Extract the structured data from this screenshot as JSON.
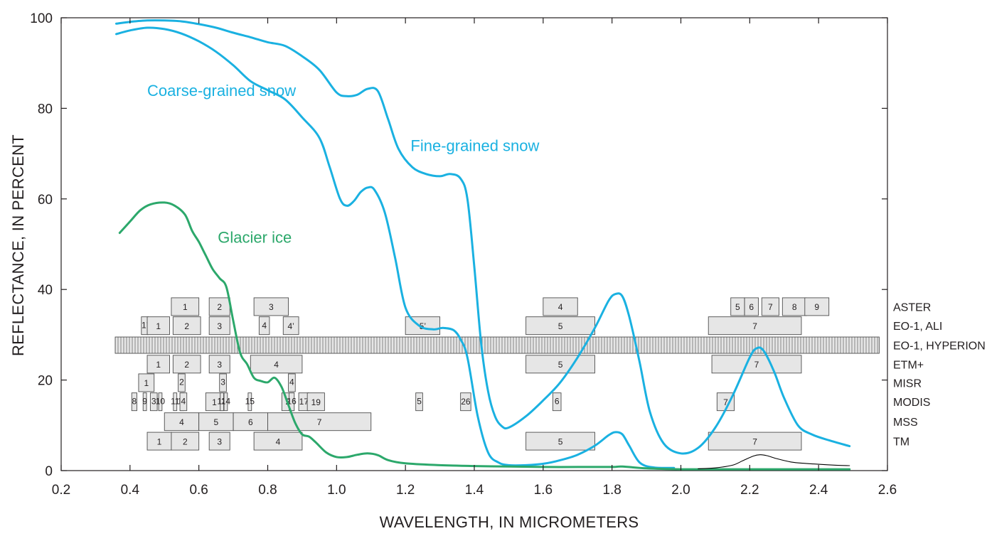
{
  "chart_data": {
    "type": "line",
    "xlabel": "WAVELENGTH, IN MICROMETERS",
    "ylabel": "REFLECTANCE, IN PERCENT",
    "xlim": [
      0.2,
      2.6
    ],
    "ylim": [
      0,
      100
    ],
    "xticks": [
      "0.2",
      "0.4",
      "0.6",
      "0.8",
      "1.0",
      "1.2",
      "1.4",
      "1.6",
      "1.8",
      "2.0",
      "2.2",
      "2.4",
      "2.6"
    ],
    "yticks": [
      "0",
      "20",
      "40",
      "60",
      "80",
      "100"
    ],
    "grid": false,
    "colors": {
      "snow": "#1ab1e1",
      "ice": "#2ca86b",
      "box_fill": "#e6e6e6",
      "box_stroke": "#4d4d4d",
      "text": "#231f20"
    },
    "series": [
      {
        "name": "Fine-grained snow",
        "color": "#1ab1e1",
        "x": [
          0.36,
          0.4,
          0.45,
          0.5,
          0.55,
          0.6,
          0.65,
          0.7,
          0.75,
          0.8,
          0.85,
          0.9,
          0.95,
          1.0,
          1.03,
          1.06,
          1.09,
          1.12,
          1.15,
          1.18,
          1.22,
          1.26,
          1.3,
          1.33,
          1.36,
          1.38,
          1.4,
          1.42,
          1.44,
          1.46,
          1.48,
          1.5,
          1.55,
          1.6,
          1.65,
          1.7,
          1.75,
          1.79,
          1.81,
          1.83,
          1.85,
          1.88,
          1.91,
          1.95,
          2.0,
          2.05,
          2.1,
          2.15,
          2.2,
          2.22,
          2.24,
          2.27,
          2.3,
          2.34,
          2.38,
          2.43,
          2.49
        ],
        "y": [
          98.7,
          99.1,
          99.4,
          99.4,
          99.2,
          98.6,
          97.8,
          96.7,
          95.7,
          94.6,
          93.8,
          91.5,
          88.5,
          83.5,
          82.7,
          83.0,
          84.3,
          83.8,
          77.5,
          71.0,
          67.0,
          65.5,
          65.0,
          65.5,
          64.5,
          60.0,
          45.0,
          28.0,
          17.5,
          12.0,
          9.8,
          9.5,
          12.0,
          15.5,
          19.5,
          25.0,
          31.5,
          37.5,
          39.0,
          38.5,
          34.0,
          24.0,
          13.0,
          6.0,
          3.8,
          5.0,
          9.5,
          16.5,
          25.0,
          27.0,
          26.5,
          22.0,
          16.0,
          10.0,
          8.0,
          6.7,
          5.4
        ]
      },
      {
        "name": "Coarse-grained snow",
        "color": "#1ab1e1",
        "x": [
          0.36,
          0.4,
          0.45,
          0.5,
          0.55,
          0.6,
          0.65,
          0.7,
          0.75,
          0.8,
          0.85,
          0.9,
          0.95,
          0.98,
          1.01,
          1.03,
          1.05,
          1.07,
          1.09,
          1.11,
          1.14,
          1.17,
          1.2,
          1.24,
          1.28,
          1.31,
          1.34,
          1.36,
          1.38,
          1.41,
          1.44,
          1.47,
          1.5,
          1.55,
          1.6,
          1.65,
          1.7,
          1.75,
          1.79,
          1.81,
          1.83,
          1.85,
          1.88,
          1.92,
          1.98
        ],
        "y": [
          96.4,
          97.2,
          97.8,
          97.5,
          96.5,
          94.8,
          92.5,
          89.5,
          86.0,
          84.0,
          82.0,
          78.0,
          73.5,
          67.0,
          60.0,
          58.5,
          59.5,
          61.5,
          62.5,
          62.0,
          57.0,
          47.0,
          36.0,
          32.0,
          31.2,
          31.5,
          31.0,
          29.0,
          25.0,
          12.0,
          4.0,
          1.8,
          1.2,
          1.2,
          1.5,
          2.3,
          3.5,
          5.5,
          7.8,
          8.5,
          8.0,
          5.5,
          1.8,
          0.7,
          0.6
        ]
      },
      {
        "name": "Glacier ice",
        "color": "#2ca86b",
        "x": [
          0.37,
          0.4,
          0.43,
          0.46,
          0.5,
          0.53,
          0.56,
          0.58,
          0.6,
          0.62,
          0.64,
          0.66,
          0.68,
          0.7,
          0.72,
          0.74,
          0.76,
          0.78,
          0.8,
          0.82,
          0.84,
          0.86,
          0.88,
          0.9,
          0.92,
          0.94,
          0.97,
          1.0,
          1.03,
          1.06,
          1.09,
          1.12,
          1.15,
          1.2,
          1.3,
          1.4,
          1.5,
          1.6,
          1.7,
          1.8,
          1.83,
          1.9,
          2.0,
          2.1,
          2.2,
          2.3,
          2.4,
          2.49
        ],
        "y": [
          52.5,
          55.0,
          57.5,
          58.8,
          59.2,
          58.5,
          56.5,
          53.0,
          50.5,
          47.5,
          44.5,
          42.5,
          40.5,
          33.0,
          26.0,
          23.5,
          20.5,
          19.8,
          19.5,
          20.5,
          18.5,
          14.5,
          10.5,
          8.0,
          7.5,
          6.2,
          4.0,
          3.0,
          3.0,
          3.5,
          3.8,
          3.4,
          2.3,
          1.6,
          1.2,
          1.0,
          0.9,
          0.8,
          0.8,
          0.8,
          0.9,
          0.5,
          0.3,
          0.3,
          0.3,
          0.3,
          0.3,
          0.3
        ]
      },
      {
        "color": "#000000",
        "x": [
          2.05,
          2.1,
          2.15,
          2.18,
          2.21,
          2.23,
          2.25,
          2.28,
          2.32,
          2.36,
          2.4,
          2.45,
          2.49
        ],
        "y": [
          0.4,
          0.6,
          1.2,
          2.2,
          3.2,
          3.5,
          3.3,
          2.6,
          1.9,
          1.6,
          1.4,
          1.2,
          1.1
        ]
      }
    ],
    "annotations": [
      {
        "text": "Coarse-grained snow",
        "color": "#1ab1e1",
        "x": 0.45,
        "y": 82.7
      },
      {
        "text": "Fine-grained snow",
        "color": "#1ab1e1",
        "x": 1.215,
        "y": 70.6
      },
      {
        "text": "Glacier ice",
        "color": "#2ca86b",
        "x": 0.655,
        "y": 50.3
      }
    ],
    "sensors": [
      {
        "name": "ASTER",
        "level": 36.2,
        "bands": [
          {
            "label": "1",
            "x0": 0.52,
            "x1": 0.6
          },
          {
            "label": "2",
            "x0": 0.63,
            "x1": 0.69
          },
          {
            "label": "3",
            "x0": 0.76,
            "x1": 0.86
          },
          {
            "label": "4",
            "x0": 1.6,
            "x1": 1.7
          },
          {
            "label": "5",
            "x0": 2.145,
            "x1": 2.185
          },
          {
            "label": "6",
            "x0": 2.185,
            "x1": 2.225
          },
          {
            "label": "7",
            "x0": 2.235,
            "x1": 2.285
          },
          {
            "label": "8",
            "x0": 2.295,
            "x1": 2.365
          },
          {
            "label": "9",
            "x0": 2.36,
            "x1": 2.43
          }
        ]
      },
      {
        "name": "EO-1, ALI",
        "level": 32.0,
        "bands": [
          {
            "label": "1’",
            "x0": 0.433,
            "x1": 0.453
          },
          {
            "label": "1",
            "x0": 0.45,
            "x1": 0.515
          },
          {
            "label": "2",
            "x0": 0.525,
            "x1": 0.605
          },
          {
            "label": "3",
            "x0": 0.63,
            "x1": 0.69
          },
          {
            "label": "4",
            "x0": 0.775,
            "x1": 0.805
          },
          {
            "label": "4’",
            "x0": 0.845,
            "x1": 0.89
          },
          {
            "label": "5’",
            "x0": 1.2,
            "x1": 1.3
          },
          {
            "label": "5",
            "x0": 1.55,
            "x1": 1.75
          },
          {
            "label": "7",
            "x0": 2.08,
            "x1": 2.35
          }
        ]
      },
      {
        "name": "EO-1, HYPERION",
        "level": 27.7,
        "bands": [
          {
            "label": "",
            "x0": 0.357,
            "x1": 2.576
          }
        ]
      },
      {
        "name": "ETM+",
        "level": 23.5,
        "bands": [
          {
            "label": "1",
            "x0": 0.45,
            "x1": 0.515
          },
          {
            "label": "2",
            "x0": 0.525,
            "x1": 0.605
          },
          {
            "label": "3",
            "x0": 0.63,
            "x1": 0.69
          },
          {
            "label": "4",
            "x0": 0.75,
            "x1": 0.9
          },
          {
            "label": "5",
            "x0": 1.55,
            "x1": 1.75
          },
          {
            "label": "7",
            "x0": 2.09,
            "x1": 2.35
          }
        ]
      },
      {
        "name": "MISR",
        "level": 19.4,
        "bands": [
          {
            "label": "1",
            "x0": 0.425,
            "x1": 0.47
          },
          {
            "label": "2",
            "x0": 0.54,
            "x1": 0.56
          },
          {
            "label": "3",
            "x0": 0.66,
            "x1": 0.68
          },
          {
            "label": "4",
            "x0": 0.86,
            "x1": 0.88
          }
        ]
      },
      {
        "name": "MODIS",
        "level": 15.2,
        "bands": [
          {
            "label": "8",
            "x0": 0.405,
            "x1": 0.42
          },
          {
            "label": "9",
            "x0": 0.438,
            "x1": 0.448
          },
          {
            "label": "3",
            "x0": 0.459,
            "x1": 0.479
          },
          {
            "label": "10",
            "x0": 0.483,
            "x1": 0.493
          },
          {
            "label": "11",
            "x0": 0.526,
            "x1": 0.536
          },
          {
            "label": "12",
            "x0": 0.546,
            "x1": 0.556
          },
          {
            "label": "4",
            "x0": 0.545,
            "x1": 0.565
          },
          {
            "label": "1",
            "x0": 0.62,
            "x1": 0.67
          },
          {
            "label": "13",
            "x0": 0.662,
            "x1": 0.672
          },
          {
            "label": "14",
            "x0": 0.673,
            "x1": 0.683
          },
          {
            "label": "15",
            "x0": 0.743,
            "x1": 0.753
          },
          {
            "label": "2",
            "x0": 0.841,
            "x1": 0.876
          },
          {
            "label": "16",
            "x0": 0.862,
            "x1": 0.877
          },
          {
            "label": "17",
            "x0": 0.89,
            "x1": 0.92
          },
          {
            "label": "19",
            "x0": 0.915,
            "x1": 0.965
          },
          {
            "label": "5",
            "x0": 1.23,
            "x1": 1.25
          },
          {
            "label": "26",
            "x0": 1.36,
            "x1": 1.39
          },
          {
            "label": "6",
            "x0": 1.628,
            "x1": 1.652
          },
          {
            "label": "7",
            "x0": 2.105,
            "x1": 2.155
          }
        ]
      },
      {
        "name": "MSS",
        "level": 10.8,
        "bands": [
          {
            "label": "4",
            "x0": 0.5,
            "x1": 0.6
          },
          {
            "label": "5",
            "x0": 0.6,
            "x1": 0.7
          },
          {
            "label": "6",
            "x0": 0.7,
            "x1": 0.8
          },
          {
            "label": "7",
            "x0": 0.8,
            "x1": 1.1
          }
        ]
      },
      {
        "name": "TM",
        "level": 6.5,
        "bands": [
          {
            "label": "1",
            "x0": 0.45,
            "x1": 0.52
          },
          {
            "label": "2",
            "x0": 0.52,
            "x1": 0.6
          },
          {
            "label": "3",
            "x0": 0.63,
            "x1": 0.69
          },
          {
            "label": "4",
            "x0": 0.76,
            "x1": 0.9
          },
          {
            "label": "5",
            "x0": 1.55,
            "x1": 1.75
          },
          {
            "label": "7",
            "x0": 2.08,
            "x1": 2.35
          }
        ]
      }
    ]
  }
}
